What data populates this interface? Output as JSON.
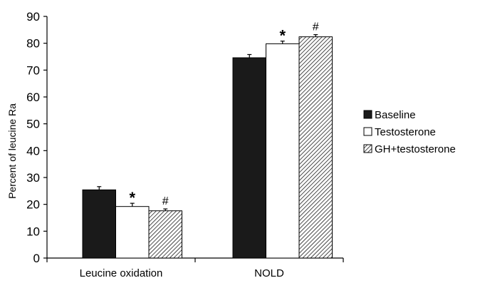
{
  "chart_data": {
    "type": "bar",
    "categories": [
      "Leucine oxidation",
      "NOLD"
    ],
    "series": [
      {
        "name": "Baseline",
        "values": [
          25.4,
          74.6
        ],
        "errors": [
          1.2,
          1.2
        ],
        "markers": [
          "",
          ""
        ]
      },
      {
        "name": "Testosterone",
        "values": [
          19.2,
          79.8
        ],
        "errors": [
          1.2,
          1.0
        ],
        "markers": [
          "*",
          "*"
        ]
      },
      {
        "name": "GH+testosterone",
        "values": [
          17.6,
          82.4
        ],
        "errors": [
          0.7,
          0.8
        ],
        "markers": [
          "#",
          "#"
        ]
      }
    ],
    "title": "",
    "xlabel": "",
    "ylabel": "Percent of leucine Ra",
    "ylim": [
      0,
      90
    ],
    "yticks": [
      0,
      10,
      20,
      30,
      40,
      50,
      60,
      70,
      80,
      90
    ],
    "grid": false,
    "legend": "right",
    "colors": {
      "baseline": "#1a1a1a",
      "testosterone": "#ffffff",
      "gh_testosterone": "hatched"
    }
  }
}
